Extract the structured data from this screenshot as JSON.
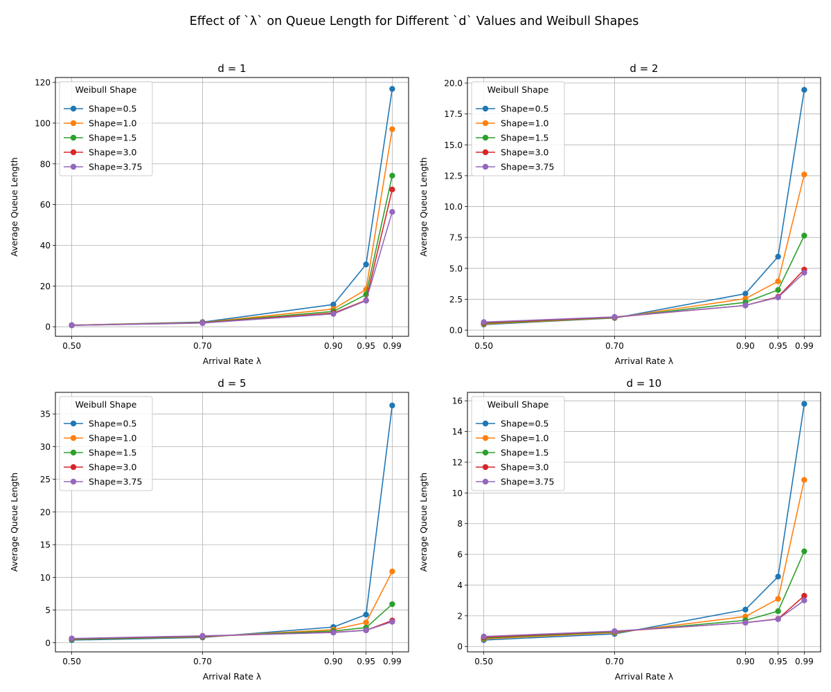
{
  "figure": {
    "suptitle": "Effect of `λ` on Queue Length for Different `d` Values and Weibull Shapes"
  },
  "chart_data": [
    {
      "type": "line",
      "title": "d = 1",
      "xlabel": "Arrival Rate λ",
      "ylabel": "Average Queue Length",
      "x": [
        0.5,
        0.7,
        0.9,
        0.95,
        0.99
      ],
      "xticklabels": [
        "0.50",
        "0.70",
        "0.90",
        "0.95",
        "0.99"
      ],
      "xlim": [
        0.475,
        1.015
      ],
      "ylim": [
        -4.7,
        122.4
      ],
      "yticks": [
        0,
        20,
        40,
        60,
        80,
        100,
        120
      ],
      "yticklabels": [
        "0",
        "20",
        "40",
        "60",
        "80",
        "100",
        "120"
      ],
      "grid": true,
      "legend": {
        "title": "Weibull Shape",
        "position": "top-left"
      },
      "series": [
        {
          "name": "Shape=0.5",
          "color": "#1f77b4",
          "values": [
            0.8,
            2.3,
            10.9,
            30.6,
            116.8
          ]
        },
        {
          "name": "Shape=1.0",
          "color": "#ff7f0e",
          "values": [
            0.8,
            2.1,
            8.7,
            18.3,
            97.0
          ]
        },
        {
          "name": "Shape=1.5",
          "color": "#2ca02c",
          "values": [
            0.7,
            2.0,
            7.5,
            15.8,
            74.2
          ]
        },
        {
          "name": "Shape=3.0",
          "color": "#d62728",
          "values": [
            0.7,
            1.9,
            6.7,
            13.0,
            67.4
          ]
        },
        {
          "name": "Shape=3.75",
          "color": "#9467bd",
          "values": [
            0.7,
            1.8,
            6.3,
            12.8,
            56.4
          ]
        }
      ]
    },
    {
      "type": "line",
      "title": "d = 2",
      "xlabel": "Arrival Rate λ",
      "ylabel": "Average Queue Length",
      "x": [
        0.5,
        0.7,
        0.9,
        0.95,
        0.99
      ],
      "xticklabels": [
        "0.50",
        "0.70",
        "0.90",
        "0.95",
        "0.99"
      ],
      "xlim": [
        0.475,
        1.015
      ],
      "ylim": [
        -0.5,
        20.45
      ],
      "yticks": [
        0,
        2.5,
        5,
        7.5,
        10,
        12.5,
        15,
        17.5,
        20
      ],
      "yticklabels": [
        "0.0",
        "2.5",
        "5.0",
        "7.5",
        "10.0",
        "12.5",
        "15.0",
        "17.5",
        "20.0"
      ],
      "grid": true,
      "legend": {
        "title": "Weibull Shape",
        "position": "top-left"
      },
      "series": [
        {
          "name": "Shape=0.5",
          "color": "#1f77b4",
          "values": [
            0.45,
            0.98,
            2.95,
            5.95,
            19.45
          ]
        },
        {
          "name": "Shape=1.0",
          "color": "#ff7f0e",
          "values": [
            0.5,
            1.0,
            2.55,
            3.95,
            12.6
          ]
        },
        {
          "name": "Shape=1.5",
          "color": "#2ca02c",
          "values": [
            0.55,
            1.02,
            2.25,
            3.25,
            7.65
          ]
        },
        {
          "name": "Shape=3.0",
          "color": "#d62728",
          "values": [
            0.6,
            1.05,
            2.0,
            2.7,
            4.9
          ]
        },
        {
          "name": "Shape=3.75",
          "color": "#9467bd",
          "values": [
            0.65,
            1.07,
            2.0,
            2.65,
            4.65
          ]
        }
      ]
    },
    {
      "type": "line",
      "title": "d = 5",
      "xlabel": "Arrival Rate λ",
      "ylabel": "Average Queue Length",
      "x": [
        0.5,
        0.7,
        0.9,
        0.95,
        0.99
      ],
      "xticklabels": [
        "0.50",
        "0.70",
        "0.90",
        "0.95",
        "0.99"
      ],
      "xlim": [
        0.475,
        1.015
      ],
      "ylim": [
        -1.4,
        38.3
      ],
      "yticks": [
        0,
        5,
        10,
        15,
        20,
        25,
        30,
        35
      ],
      "yticklabels": [
        "0",
        "5",
        "10",
        "15",
        "20",
        "25",
        "30",
        "35"
      ],
      "grid": true,
      "legend": {
        "title": "Weibull Shape",
        "position": "top-left"
      },
      "series": [
        {
          "name": "Shape=0.5",
          "color": "#1f77b4",
          "values": [
            0.4,
            0.8,
            2.4,
            4.3,
            36.3
          ]
        },
        {
          "name": "Shape=1.0",
          "color": "#ff7f0e",
          "values": [
            0.5,
            0.9,
            2.0,
            3.1,
            10.9
          ]
        },
        {
          "name": "Shape=1.5",
          "color": "#2ca02c",
          "values": [
            0.5,
            0.95,
            1.8,
            2.3,
            5.9
          ]
        },
        {
          "name": "Shape=3.0",
          "color": "#d62728",
          "values": [
            0.6,
            1.0,
            1.6,
            1.9,
            3.4
          ]
        },
        {
          "name": "Shape=3.75",
          "color": "#9467bd",
          "values": [
            0.65,
            1.05,
            1.55,
            1.9,
            3.2
          ]
        }
      ]
    },
    {
      "type": "line",
      "title": "d = 10",
      "xlabel": "Arrival Rate λ",
      "ylabel": "Average Queue Length",
      "x": [
        0.5,
        0.7,
        0.9,
        0.95,
        0.99
      ],
      "xticklabels": [
        "0.50",
        "0.70",
        "0.90",
        "0.95",
        "0.99"
      ],
      "xlim": [
        0.475,
        1.015
      ],
      "ylim": [
        -0.35,
        16.55
      ],
      "yticks": [
        0,
        2,
        4,
        6,
        8,
        10,
        12,
        14,
        16
      ],
      "yticklabels": [
        "0",
        "2",
        "4",
        "6",
        "8",
        "10",
        "12",
        "14",
        "16"
      ],
      "grid": true,
      "legend": {
        "title": "Weibull Shape",
        "position": "top-left"
      },
      "series": [
        {
          "name": "Shape=0.5",
          "color": "#1f77b4",
          "values": [
            0.42,
            0.82,
            2.4,
            4.55,
            15.8
          ]
        },
        {
          "name": "Shape=1.0",
          "color": "#ff7f0e",
          "values": [
            0.5,
            0.9,
            1.95,
            3.1,
            10.85
          ]
        },
        {
          "name": "Shape=1.5",
          "color": "#2ca02c",
          "values": [
            0.55,
            0.95,
            1.7,
            2.3,
            6.2
          ]
        },
        {
          "name": "Shape=3.0",
          "color": "#d62728",
          "values": [
            0.6,
            0.98,
            1.55,
            1.8,
            3.3
          ]
        },
        {
          "name": "Shape=3.75",
          "color": "#9467bd",
          "values": [
            0.65,
            1.0,
            1.55,
            1.78,
            3.0
          ]
        }
      ]
    }
  ]
}
